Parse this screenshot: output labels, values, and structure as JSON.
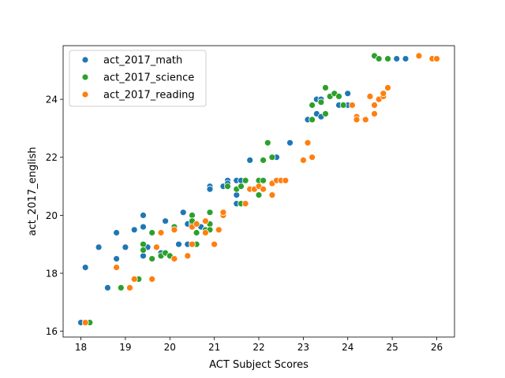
{
  "chart_data": {
    "type": "scatter",
    "title": "",
    "xlabel": "ACT Subject Scores",
    "ylabel": "act_2017_english",
    "xlim": [
      17.6,
      26.4
    ],
    "ylim": [
      15.8,
      25.85
    ],
    "xticks": [
      18,
      19,
      20,
      21,
      22,
      23,
      24,
      25,
      26
    ],
    "yticks": [
      16,
      18,
      20,
      22,
      24
    ],
    "grid": false,
    "legend_position": "upper-left",
    "series": [
      {
        "name": "act_2017_math",
        "color": "#1f77b4",
        "points": [
          [
            18.0,
            16.3
          ],
          [
            18.1,
            18.2
          ],
          [
            18.4,
            18.9
          ],
          [
            18.6,
            17.5
          ],
          [
            18.8,
            19.4
          ],
          [
            18.8,
            18.5
          ],
          [
            19.0,
            18.9
          ],
          [
            19.2,
            19.5
          ],
          [
            19.4,
            20.0
          ],
          [
            19.4,
            19.6
          ],
          [
            19.4,
            18.6
          ],
          [
            19.5,
            18.9
          ],
          [
            19.8,
            18.7
          ],
          [
            19.9,
            19.8
          ],
          [
            20.0,
            18.6
          ],
          [
            20.2,
            19.0
          ],
          [
            20.3,
            20.1
          ],
          [
            20.4,
            19.7
          ],
          [
            20.4,
            19.0
          ],
          [
            20.5,
            19.7
          ],
          [
            20.6,
            19.0
          ],
          [
            20.7,
            19.6
          ],
          [
            20.8,
            19.5
          ],
          [
            20.9,
            21.0
          ],
          [
            20.9,
            20.9
          ],
          [
            21.2,
            21.0
          ],
          [
            21.3,
            21.2
          ],
          [
            21.3,
            21.1
          ],
          [
            21.5,
            21.2
          ],
          [
            21.5,
            20.7
          ],
          [
            21.5,
            20.4
          ],
          [
            21.6,
            21.2
          ],
          [
            21.8,
            21.9
          ],
          [
            22.0,
            21.0
          ],
          [
            22.4,
            22.0
          ],
          [
            22.7,
            22.5
          ],
          [
            23.1,
            23.3
          ],
          [
            23.3,
            24.0
          ],
          [
            23.3,
            23.5
          ],
          [
            23.4,
            24.0
          ],
          [
            23.4,
            23.4
          ],
          [
            23.6,
            24.1
          ],
          [
            23.8,
            23.8
          ],
          [
            24.0,
            24.2
          ],
          [
            24.0,
            23.8
          ],
          [
            24.7,
            25.4
          ],
          [
            25.1,
            25.4
          ],
          [
            25.3,
            25.4
          ]
        ]
      },
      {
        "name": "act_2017_science",
        "color": "#2ca02c",
        "points": [
          [
            18.2,
            16.3
          ],
          [
            18.9,
            17.5
          ],
          [
            19.3,
            17.8
          ],
          [
            19.4,
            19.0
          ],
          [
            19.4,
            18.8
          ],
          [
            19.6,
            19.4
          ],
          [
            19.6,
            18.5
          ],
          [
            19.8,
            18.6
          ],
          [
            19.9,
            18.7
          ],
          [
            20.0,
            18.6
          ],
          [
            20.1,
            19.6
          ],
          [
            20.5,
            20.0
          ],
          [
            20.5,
            19.8
          ],
          [
            20.6,
            19.4
          ],
          [
            20.6,
            19.0
          ],
          [
            20.8,
            19.5
          ],
          [
            20.9,
            20.1
          ],
          [
            20.9,
            19.7
          ],
          [
            20.9,
            19.5
          ],
          [
            21.3,
            21.0
          ],
          [
            21.5,
            20.9
          ],
          [
            21.6,
            20.4
          ],
          [
            21.6,
            21.0
          ],
          [
            21.7,
            21.2
          ],
          [
            22.0,
            21.2
          ],
          [
            22.0,
            20.7
          ],
          [
            22.1,
            21.9
          ],
          [
            22.1,
            21.2
          ],
          [
            22.2,
            22.5
          ],
          [
            22.3,
            22.0
          ],
          [
            23.2,
            23.8
          ],
          [
            23.2,
            23.3
          ],
          [
            23.4,
            23.9
          ],
          [
            23.5,
            24.4
          ],
          [
            23.5,
            23.5
          ],
          [
            23.6,
            24.1
          ],
          [
            23.7,
            24.2
          ],
          [
            23.8,
            24.1
          ],
          [
            23.9,
            23.8
          ],
          [
            24.6,
            25.5
          ],
          [
            24.7,
            25.4
          ],
          [
            24.9,
            25.4
          ]
        ]
      },
      {
        "name": "act_2017_reading",
        "color": "#ff7f0e",
        "points": [
          [
            18.1,
            16.3
          ],
          [
            18.8,
            18.2
          ],
          [
            19.1,
            17.5
          ],
          [
            19.2,
            17.8
          ],
          [
            19.6,
            17.8
          ],
          [
            19.7,
            18.9
          ],
          [
            19.8,
            19.4
          ],
          [
            20.1,
            18.5
          ],
          [
            20.1,
            19.5
          ],
          [
            20.4,
            18.6
          ],
          [
            20.5,
            19.6
          ],
          [
            20.5,
            19.0
          ],
          [
            20.6,
            19.7
          ],
          [
            20.8,
            19.4
          ],
          [
            20.8,
            19.8
          ],
          [
            21.0,
            19.0
          ],
          [
            21.1,
            19.5
          ],
          [
            21.2,
            20.0
          ],
          [
            21.2,
            20.1
          ],
          [
            21.7,
            20.4
          ],
          [
            21.8,
            20.9
          ],
          [
            21.9,
            20.9
          ],
          [
            22.0,
            21.0
          ],
          [
            22.1,
            20.9
          ],
          [
            22.3,
            20.7
          ],
          [
            22.3,
            21.1
          ],
          [
            22.4,
            21.2
          ],
          [
            22.5,
            21.2
          ],
          [
            22.6,
            21.2
          ],
          [
            23.0,
            21.9
          ],
          [
            23.1,
            22.5
          ],
          [
            23.2,
            22.0
          ],
          [
            24.1,
            23.8
          ],
          [
            24.2,
            23.4
          ],
          [
            24.2,
            23.3
          ],
          [
            24.4,
            23.3
          ],
          [
            24.5,
            24.1
          ],
          [
            24.6,
            23.5
          ],
          [
            24.6,
            23.8
          ],
          [
            24.7,
            24.0
          ],
          [
            24.8,
            24.1
          ],
          [
            24.8,
            24.2
          ],
          [
            24.9,
            24.4
          ],
          [
            25.6,
            25.5
          ],
          [
            25.9,
            25.4
          ],
          [
            26.0,
            25.4
          ]
        ]
      }
    ]
  }
}
